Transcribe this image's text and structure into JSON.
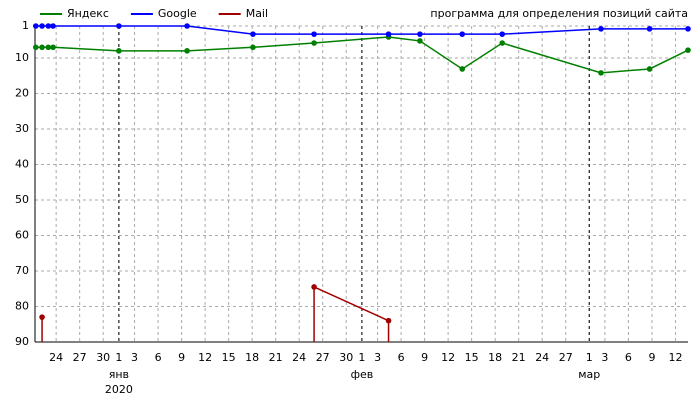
{
  "chart_data": {
    "type": "line",
    "annotation": "программа для определения позиций сайта",
    "x": [
      -10.6,
      -9.8,
      -9,
      -8.4,
      0,
      8.7,
      17.1,
      24.9,
      34.4,
      38.4,
      43.8,
      48.9,
      61.5,
      67.7,
      72.6
    ],
    "series": [
      {
        "name": "Яндекс",
        "color": "#008000",
        "values": [
          7,
          7,
          7,
          7,
          8,
          8,
          7,
          5.8,
          4.1,
          5.2,
          13.1,
          5.8,
          14.2,
          13.1,
          7.8
        ]
      },
      {
        "name": "Google",
        "color": "#0000ff",
        "values": [
          1,
          1,
          1,
          1,
          1,
          1,
          3.3,
          3.3,
          3.3,
          3.3,
          3.3,
          3.3,
          1.8,
          1.8,
          1.8
        ]
      },
      {
        "name": "Mail",
        "color": "#a00000",
        "values": [
          null,
          83,
          null,
          null,
          null,
          null,
          null,
          74.5,
          84,
          null,
          null,
          null,
          null,
          null,
          null
        ]
      }
    ],
    "xlim": [
      -10.7,
      72.6
    ],
    "xticks": [
      {
        "value": -8,
        "label": "24"
      },
      {
        "value": -5,
        "label": "27"
      },
      {
        "value": -2,
        "label": "30"
      },
      {
        "value": 0,
        "label": "1"
      },
      {
        "value": 2,
        "label": "3"
      },
      {
        "value": 5,
        "label": "6"
      },
      {
        "value": 8,
        "label": "9"
      },
      {
        "value": 11,
        "label": "12"
      },
      {
        "value": 14,
        "label": "15"
      },
      {
        "value": 17,
        "label": "18"
      },
      {
        "value": 20,
        "label": "21"
      },
      {
        "value": 23,
        "label": "24"
      },
      {
        "value": 26,
        "label": "27"
      },
      {
        "value": 29,
        "label": "30"
      },
      {
        "value": 31,
        "label": "1"
      },
      {
        "value": 33,
        "label": "3"
      },
      {
        "value": 36,
        "label": "6"
      },
      {
        "value": 39,
        "label": "9"
      },
      {
        "value": 42,
        "label": "12"
      },
      {
        "value": 45,
        "label": "15"
      },
      {
        "value": 48,
        "label": "18"
      },
      {
        "value": 51,
        "label": "21"
      },
      {
        "value": 54,
        "label": "24"
      },
      {
        "value": 57,
        "label": "27"
      },
      {
        "value": 60,
        "label": "1"
      },
      {
        "value": 62,
        "label": "3"
      },
      {
        "value": 65,
        "label": "6"
      },
      {
        "value": 68,
        "label": "9"
      },
      {
        "value": 71,
        "label": "12"
      }
    ],
    "months": [
      {
        "value": 0,
        "label": "янв"
      },
      {
        "value": 31,
        "label": "фев"
      },
      {
        "value": 60,
        "label": "мар"
      }
    ],
    "year": "2020",
    "ylim": [
      1,
      90
    ],
    "yticks": [
      1,
      10,
      20,
      30,
      40,
      50,
      60,
      70,
      80,
      90
    ],
    "grid": true
  }
}
